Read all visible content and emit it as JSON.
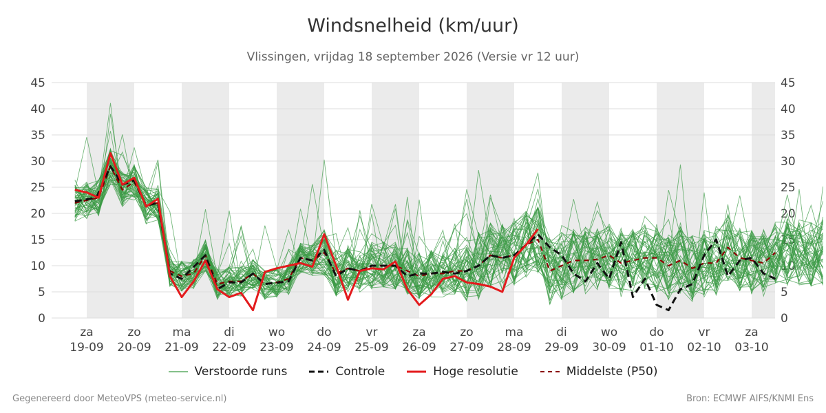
{
  "title": "Windsnelheid (km/uur)",
  "subtitle": "Vlissingen, vrijdag 18 september 2026 (Versie vr 12 uur)",
  "footer": {
    "left": "Gegenereerd door MeteoVPS (meteo-service.nl)",
    "right": "Bron: ECMWF AIFS/KNMI Ens"
  },
  "colors": {
    "ensemble": "#3a9a45",
    "control": "#111111",
    "highres": "#e31a1c",
    "median": "#8b0000",
    "weekend_band": "#ebebeb",
    "grid": "#dddddd"
  },
  "legend": [
    {
      "label": "Verstoorde runs",
      "style": "thin-green"
    },
    {
      "label": "Controle",
      "style": "dashed-black"
    },
    {
      "label": "Hoge resolutie",
      "style": "solid-red"
    },
    {
      "label": "Middelste (P50)",
      "style": "dashed-darkred"
    }
  ],
  "chart_data": {
    "type": "line",
    "title": "Windsnelheid (km/uur)",
    "ylim": [
      0,
      45
    ],
    "yticks": [
      0,
      5,
      10,
      15,
      20,
      25,
      30,
      35,
      40,
      45
    ],
    "xlim": [
      -0.25,
      15.5
    ],
    "days": [
      {
        "day": "za",
        "date": "19-09"
      },
      {
        "day": "zo",
        "date": "20-09"
      },
      {
        "day": "ma",
        "date": "21-09"
      },
      {
        "day": "di",
        "date": "22-09"
      },
      {
        "day": "wo",
        "date": "23-09"
      },
      {
        "day": "do",
        "date": "24-09"
      },
      {
        "day": "vr",
        "date": "25-09"
      },
      {
        "day": "za",
        "date": "26-09"
      },
      {
        "day": "zo",
        "date": "27-09"
      },
      {
        "day": "ma",
        "date": "28-09"
      },
      {
        "day": "di",
        "date": "29-09"
      },
      {
        "day": "wo",
        "date": "30-09"
      },
      {
        "day": "do",
        "date": "01-10"
      },
      {
        "day": "vr",
        "date": "02-10"
      },
      {
        "day": "za",
        "date": "03-10"
      }
    ],
    "shaded_day_ranges": [
      [
        0,
        1
      ],
      [
        2,
        3
      ],
      [
        4,
        5
      ],
      [
        6,
        7
      ],
      [
        8,
        9
      ],
      [
        10,
        11
      ],
      [
        12,
        13
      ],
      [
        14,
        15.5
      ]
    ],
    "grid": true,
    "legend_position": "bottom-center",
    "control": [
      [
        -0.25,
        22.3
      ],
      [
        -0.05,
        22.6
      ],
      [
        0.2,
        23
      ],
      [
        0.5,
        29
      ],
      [
        0.75,
        25.5
      ],
      [
        1.0,
        26.3
      ],
      [
        1.25,
        21.5
      ],
      [
        1.5,
        22
      ],
      [
        1.75,
        8.5
      ],
      [
        2.0,
        7.5
      ],
      [
        2.5,
        12
      ],
      [
        2.75,
        5.5
      ],
      [
        3.0,
        6.8
      ],
      [
        3.25,
        6.8
      ],
      [
        3.5,
        8.5
      ],
      [
        3.75,
        6.5
      ],
      [
        4.25,
        7
      ],
      [
        4.5,
        11.5
      ],
      [
        4.75,
        11
      ],
      [
        5.0,
        13
      ],
      [
        5.25,
        8
      ],
      [
        5.5,
        9.5
      ],
      [
        5.75,
        9
      ],
      [
        6.0,
        10
      ],
      [
        6.25,
        10
      ],
      [
        6.5,
        10
      ],
      [
        6.75,
        8
      ],
      [
        7.0,
        8.5
      ],
      [
        7.25,
        8.5
      ],
      [
        7.5,
        8.8
      ],
      [
        7.75,
        8.5
      ],
      [
        8.0,
        9
      ],
      [
        8.25,
        10
      ],
      [
        8.5,
        12
      ],
      [
        8.75,
        11.5
      ],
      [
        9.0,
        12
      ],
      [
        9.5,
        16
      ],
      [
        9.75,
        13.5
      ],
      [
        10.0,
        12
      ],
      [
        10.25,
        8.5
      ],
      [
        10.5,
        7
      ],
      [
        10.75,
        10.5
      ],
      [
        11.0,
        7.5
      ],
      [
        11.25,
        14.5
      ],
      [
        11.5,
        4
      ],
      [
        11.75,
        7.5
      ],
      [
        12.0,
        2.5
      ],
      [
        12.25,
        1.5
      ],
      [
        12.5,
        5.5
      ],
      [
        12.75,
        6.5
      ],
      [
        13.0,
        12
      ],
      [
        13.25,
        15
      ],
      [
        13.5,
        8
      ],
      [
        13.75,
        11
      ],
      [
        14.0,
        11.5
      ],
      [
        14.25,
        8.5
      ],
      [
        14.5,
        7.5
      ]
    ],
    "highres": [
      [
        -0.25,
        24.5
      ],
      [
        0.0,
        24
      ],
      [
        0.25,
        23
      ],
      [
        0.5,
        31.5
      ],
      [
        0.75,
        25.5
      ],
      [
        1.0,
        26.8
      ],
      [
        1.25,
        21.3
      ],
      [
        1.5,
        22.8
      ],
      [
        1.75,
        8
      ],
      [
        2.0,
        4
      ],
      [
        2.25,
        7
      ],
      [
        2.5,
        11
      ],
      [
        2.75,
        5.5
      ],
      [
        3.0,
        4
      ],
      [
        3.25,
        4.8
      ],
      [
        3.5,
        1.5
      ],
      [
        3.75,
        8.8
      ],
      [
        4.0,
        9.5
      ],
      [
        4.25,
        10
      ],
      [
        4.5,
        10.5
      ],
      [
        4.75,
        9.8
      ],
      [
        5.0,
        16
      ],
      [
        5.25,
        10
      ],
      [
        5.5,
        3.5
      ],
      [
        5.75,
        9
      ],
      [
        6.0,
        9.5
      ],
      [
        6.25,
        9.3
      ],
      [
        6.5,
        10.8
      ],
      [
        6.75,
        5.5
      ],
      [
        7.0,
        2.5
      ],
      [
        7.25,
        4.5
      ],
      [
        7.5,
        7.5
      ],
      [
        7.75,
        8
      ],
      [
        8.0,
        6.8
      ],
      [
        8.25,
        6.5
      ],
      [
        8.5,
        6
      ],
      [
        8.75,
        5
      ],
      [
        9.0,
        11.5
      ],
      [
        9.25,
        14
      ],
      [
        9.5,
        17
      ]
    ],
    "median": [
      [
        -0.25,
        22
      ],
      [
        0.0,
        22.5
      ],
      [
        0.25,
        23
      ],
      [
        0.5,
        29
      ],
      [
        0.75,
        24.5
      ],
      [
        1.0,
        26
      ],
      [
        1.25,
        21.5
      ],
      [
        1.5,
        22
      ],
      [
        1.75,
        9
      ],
      [
        2.0,
        8
      ],
      [
        2.25,
        8.5
      ],
      [
        2.5,
        12
      ],
      [
        2.75,
        6.5
      ],
      [
        3.0,
        7
      ],
      [
        3.25,
        7
      ],
      [
        3.5,
        8.5
      ],
      [
        3.75,
        6.5
      ],
      [
        4.0,
        6.8
      ],
      [
        4.25,
        7.5
      ],
      [
        4.5,
        11.5
      ],
      [
        4.75,
        11
      ],
      [
        5.0,
        12.5
      ],
      [
        5.25,
        8.5
      ],
      [
        5.5,
        9.5
      ],
      [
        5.75,
        9
      ],
      [
        6.0,
        10
      ],
      [
        6.25,
        10
      ],
      [
        6.5,
        10
      ],
      [
        6.75,
        9
      ],
      [
        7.0,
        8
      ],
      [
        7.25,
        8.5
      ],
      [
        7.5,
        8.5
      ],
      [
        7.75,
        9
      ],
      [
        8.0,
        9
      ],
      [
        8.25,
        10
      ],
      [
        8.5,
        12
      ],
      [
        8.75,
        11.5
      ],
      [
        9.0,
        12
      ],
      [
        9.25,
        14
      ],
      [
        9.5,
        15
      ],
      [
        9.75,
        9
      ],
      [
        10.0,
        10
      ],
      [
        10.25,
        11
      ],
      [
        10.5,
        11
      ],
      [
        10.75,
        11.2
      ],
      [
        11.0,
        12
      ],
      [
        11.25,
        10.5
      ],
      [
        11.5,
        11
      ],
      [
        11.75,
        11.5
      ],
      [
        12.0,
        11.5
      ],
      [
        12.25,
        10
      ],
      [
        12.5,
        11
      ],
      [
        12.75,
        9.5
      ],
      [
        13.0,
        10.5
      ],
      [
        13.25,
        10.5
      ],
      [
        13.5,
        13.5
      ],
      [
        13.75,
        11.5
      ],
      [
        14.0,
        11
      ],
      [
        14.25,
        10.5
      ],
      [
        14.5,
        12.5
      ]
    ]
  }
}
